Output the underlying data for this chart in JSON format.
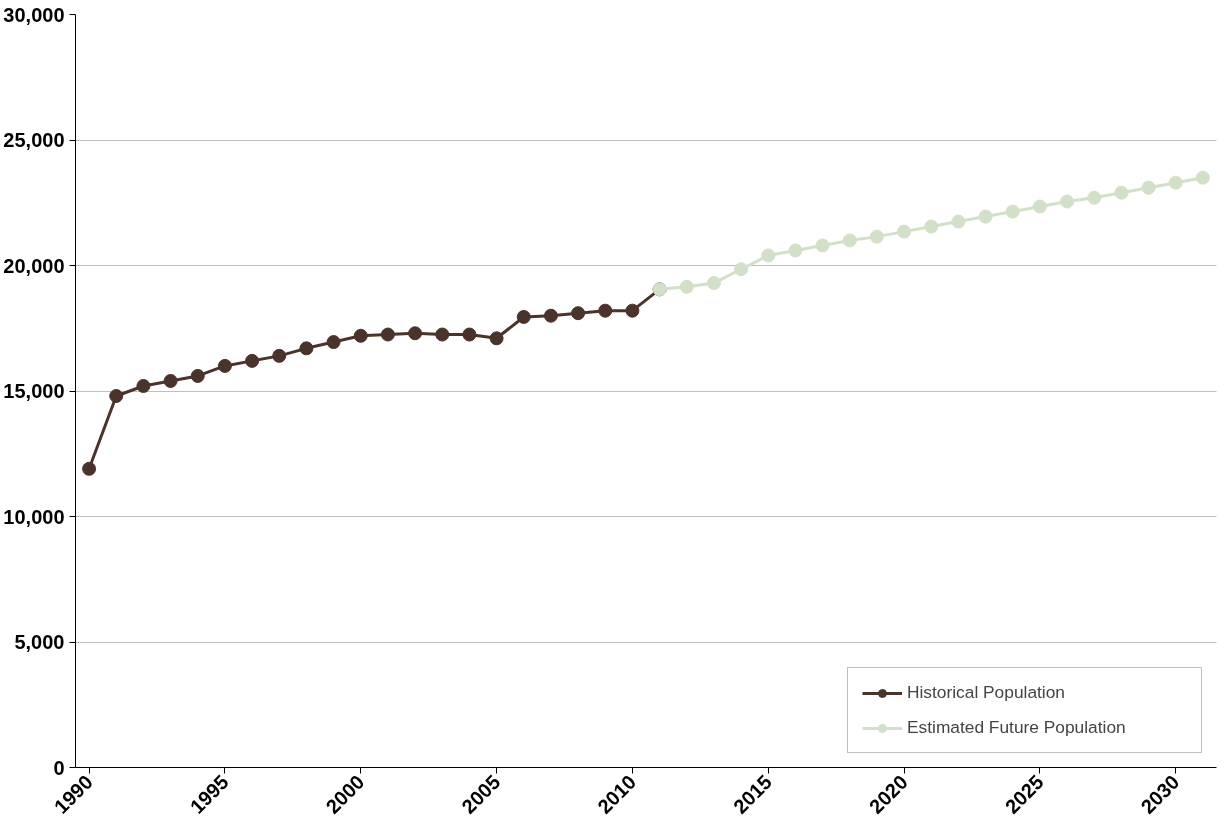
{
  "chart_data": {
    "type": "line",
    "x": [
      1990,
      1991,
      1992,
      1993,
      1994,
      1995,
      1996,
      1997,
      1998,
      1999,
      2000,
      2001,
      2002,
      2003,
      2004,
      2005,
      2006,
      2007,
      2008,
      2009,
      2010,
      2011
    ],
    "series": [
      {
        "name": "Historical Population",
        "color": "#4a332b",
        "values": [
          11900,
          14800,
          15200,
          15400,
          15600,
          16000,
          16200,
          16400,
          16700,
          16950,
          17200,
          17250,
          17300,
          17250,
          17250,
          17100,
          17950,
          18000,
          18100,
          18200,
          18200,
          19050
        ]
      },
      {
        "name": "Estimated Future Population",
        "color": "#d3e0c8",
        "x": [
          2011,
          2012,
          2013,
          2014,
          2015,
          2016,
          2017,
          2018,
          2019,
          2020,
          2021,
          2022,
          2023,
          2024,
          2025,
          2026,
          2027,
          2028,
          2029,
          2030,
          2031
        ],
        "values": [
          19050,
          19150,
          19300,
          19850,
          20400,
          20600,
          20800,
          21000,
          21150,
          21350,
          21550,
          21750,
          21950,
          22150,
          22350,
          22550,
          22700,
          22900,
          23100,
          23300,
          23500
        ]
      }
    ],
    "xlim": [
      1989.5,
      2031.5
    ],
    "xticks": [
      1990,
      1995,
      2000,
      2005,
      2010,
      2015,
      2020,
      2025,
      2030
    ],
    "ylim": [
      0,
      30000
    ],
    "yticks": [
      {
        "value": 0,
        "label": "0"
      },
      {
        "value": 5000,
        "label": "5,000"
      },
      {
        "value": 10000,
        "label": "10,000"
      },
      {
        "value": 15000,
        "label": "15,000"
      },
      {
        "value": 20000,
        "label": "20,000"
      },
      {
        "value": 25000,
        "label": "25,000"
      },
      {
        "value": 30000,
        "label": "30,000"
      }
    ],
    "grid": "y",
    "legend": "bottom right",
    "marker": "circle",
    "line_style": "solid"
  }
}
